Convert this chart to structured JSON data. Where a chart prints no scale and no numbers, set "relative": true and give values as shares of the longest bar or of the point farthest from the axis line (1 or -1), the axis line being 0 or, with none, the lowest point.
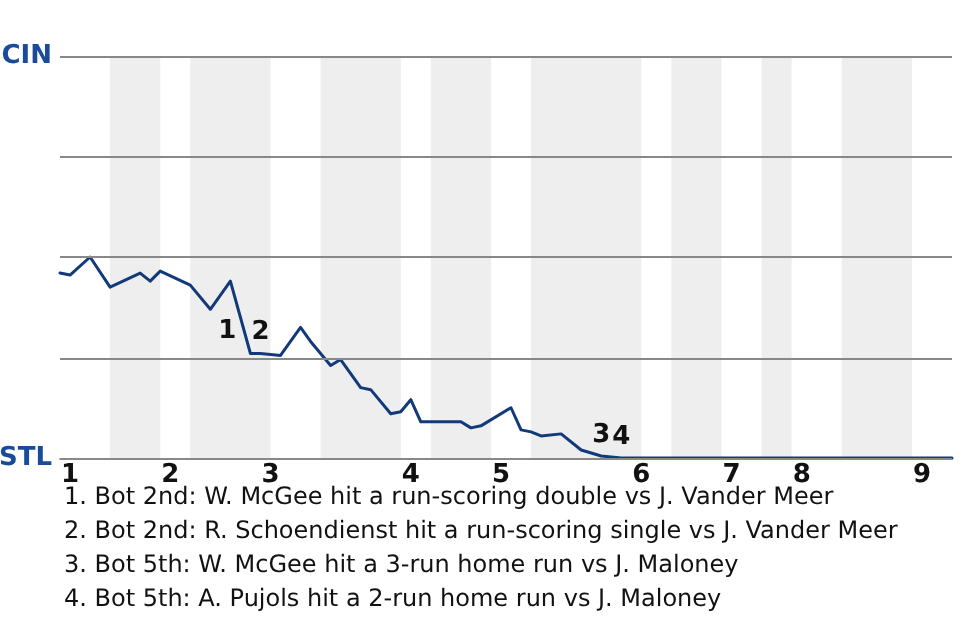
{
  "chart_data": {
    "type": "line",
    "relative": true,
    "categories": [
      null,
      "1",
      null,
      null,
      null,
      null,
      null,
      null,
      null,
      null,
      null,
      "2",
      null,
      null,
      null,
      null,
      null,
      null,
      null,
      null,
      null,
      "3",
      null,
      null,
      null,
      null,
      null,
      null,
      null,
      null,
      null,
      null,
      null,
      null,
      null,
      "4",
      null,
      null,
      null,
      null,
      null,
      null,
      null,
      null,
      "5",
      null,
      null,
      null,
      null,
      null,
      null,
      null,
      null,
      null,
      null,
      null,
      null,
      null,
      "6",
      null,
      null,
      null,
      null,
      null,
      null,
      null,
      null,
      "7",
      null,
      null,
      null,
      null,
      null,
      null,
      "8",
      null,
      null,
      null,
      null,
      null,
      null,
      null,
      null,
      null,
      null,
      null,
      "9",
      null,
      null,
      null
    ],
    "series": [
      {
        "color": "#123a7a",
        "values": [
          0.92,
          0.91,
          null,
          1,
          null,
          0.85,
          null,
          null,
          0.92,
          0.88,
          0.93,
          null,
          null,
          0.86,
          null,
          0.74,
          null,
          0.88,
          null,
          0.52,
          0.52,
          null,
          0.51,
          null,
          0.65,
          0.58,
          null,
          0.46,
          0.49,
          null,
          0.35,
          0.34,
          null,
          0.22,
          0.23,
          0.29,
          0.18,
          null,
          0.18,
          null,
          0.18,
          0.15,
          0.16,
          null,
          null,
          0.25,
          0.14,
          0.13,
          0.11,
          null,
          0.12,
          null,
          0.04,
          null,
          0.01,
          null,
          0,
          0,
          0,
          0,
          0,
          0,
          0,
          0,
          0,
          0,
          0,
          0,
          0,
          0,
          0,
          0,
          0,
          0,
          0,
          0,
          0,
          0,
          0,
          0,
          0,
          0,
          0,
          0,
          0,
          0,
          0,
          0,
          0,
          0
        ]
      }
    ],
    "ref_lines": [
      {
        "axis": "y",
        "value": 0,
        "label": "STL",
        "color": "#888888"
      },
      {
        "axis": "y",
        "value": 0.5,
        "label": null,
        "color": "#888888"
      },
      {
        "axis": "y",
        "value": 1,
        "label": null,
        "color": "#888888"
      },
      {
        "axis": "y",
        "value": 1.5,
        "label": null,
        "color": "#888888"
      },
      {
        "axis": "y",
        "value": 2,
        "label": "CIN",
        "color": "#888888"
      }
    ],
    "annotations": [
      {
        "text": "1",
        "y": 0.52
      },
      {
        "text": "2",
        "y": 0.52
      },
      {
        "text": "3",
        "y": 0.01
      },
      {
        "text": "4",
        "y": 0
      },
      "1. Bot 2nd: W. McGee hit a run-scoring double vs J. Vander Meer",
      "2. Bot 2nd: R. Schoendienst hit a run-scoring single vs J. Vander Meer",
      "3. Bot 5th: W. McGee hit a 3-run home run vs J. Maloney",
      "4. Bot 5th: A. Pujols hit a 2-run home run vs J. Maloney"
    ],
    "marker": "none",
    "line_style": "solid"
  }
}
